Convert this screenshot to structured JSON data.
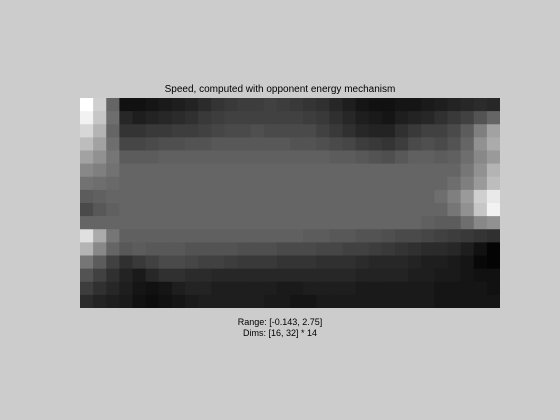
{
  "chart_data": {
    "type": "heatmap",
    "title": "Speed, computed with opponent energy mechanism",
    "range_label": "Range: [-0.143, 2.75]",
    "dims_label": "Dims: [16, 32] * 14",
    "range": [
      -0.143,
      2.75
    ],
    "rows": 16,
    "cols": 32,
    "colormap": "gray",
    "values": [
      [
        2.75,
        2.2,
        1.0,
        0.05,
        0.05,
        0.1,
        0.15,
        0.2,
        0.25,
        0.35,
        0.45,
        0.5,
        0.55,
        0.55,
        0.6,
        0.55,
        0.5,
        0.45,
        0.4,
        0.3,
        0.2,
        0.1,
        0.05,
        0.05,
        0.1,
        0.1,
        0.15,
        0.2,
        0.25,
        0.3,
        0.35,
        0.3
      ],
      [
        2.6,
        2.1,
        1.1,
        0.3,
        0.2,
        0.25,
        0.3,
        0.35,
        0.4,
        0.5,
        0.55,
        0.6,
        0.6,
        0.6,
        0.6,
        0.6,
        0.6,
        0.55,
        0.5,
        0.4,
        0.3,
        0.2,
        0.15,
        0.1,
        0.2,
        0.25,
        0.3,
        0.4,
        0.5,
        0.6,
        0.8,
        1.0
      ],
      [
        2.3,
        1.9,
        1.0,
        0.45,
        0.45,
        0.5,
        0.5,
        0.55,
        0.55,
        0.6,
        0.65,
        0.7,
        0.7,
        0.75,
        0.7,
        0.7,
        0.7,
        0.7,
        0.6,
        0.5,
        0.4,
        0.3,
        0.25,
        0.25,
        0.4,
        0.5,
        0.6,
        0.6,
        0.7,
        0.9,
        1.3,
        1.7
      ],
      [
        2.0,
        1.7,
        1.1,
        0.65,
        0.65,
        0.7,
        0.75,
        0.75,
        0.8,
        0.8,
        0.85,
        0.85,
        0.85,
        0.85,
        0.85,
        0.85,
        0.8,
        0.8,
        0.75,
        0.7,
        0.65,
        0.55,
        0.5,
        0.45,
        0.55,
        0.7,
        0.75,
        0.7,
        0.8,
        1.0,
        1.5,
        1.8
      ],
      [
        1.7,
        1.5,
        1.2,
        0.9,
        0.9,
        0.9,
        0.95,
        0.95,
        0.95,
        0.95,
        0.95,
        0.95,
        0.95,
        0.95,
        0.95,
        0.95,
        0.95,
        0.95,
        0.95,
        0.9,
        0.9,
        0.85,
        0.8,
        0.75,
        0.85,
        0.95,
        0.95,
        0.9,
        0.95,
        1.1,
        1.4,
        1.6
      ],
      [
        1.4,
        1.3,
        1.15,
        1.0,
        1.0,
        1.0,
        1.0,
        1.0,
        1.0,
        1.0,
        1.0,
        1.0,
        1.0,
        1.0,
        1.0,
        1.0,
        1.0,
        1.0,
        1.0,
        1.0,
        1.0,
        1.0,
        1.0,
        1.0,
        1.0,
        1.0,
        1.0,
        1.0,
        1.0,
        1.2,
        1.5,
        1.9
      ],
      [
        1.15,
        1.1,
        1.05,
        1.0,
        1.0,
        1.0,
        1.0,
        1.0,
        1.0,
        1.0,
        1.0,
        1.0,
        1.0,
        1.0,
        1.0,
        1.0,
        1.0,
        1.0,
        1.0,
        1.0,
        1.0,
        1.0,
        1.0,
        1.0,
        1.0,
        1.0,
        1.0,
        1.0,
        1.1,
        1.3,
        1.6,
        2.0
      ],
      [
        0.9,
        0.95,
        1.0,
        1.0,
        1.0,
        1.0,
        1.0,
        1.0,
        1.0,
        1.0,
        1.0,
        1.0,
        1.0,
        1.0,
        1.0,
        1.0,
        1.0,
        1.0,
        1.0,
        1.0,
        1.0,
        1.0,
        1.0,
        1.0,
        1.0,
        1.0,
        1.0,
        1.1,
        1.3,
        1.6,
        2.2,
        2.5
      ],
      [
        0.7,
        0.85,
        0.95,
        1.0,
        1.0,
        1.0,
        1.0,
        1.0,
        1.0,
        1.0,
        1.0,
        1.0,
        1.0,
        1.0,
        1.0,
        1.0,
        1.0,
        1.0,
        1.0,
        1.0,
        1.0,
        1.0,
        1.0,
        1.0,
        1.0,
        1.0,
        1.0,
        1.0,
        1.2,
        1.5,
        2.1,
        2.6
      ],
      [
        1.0,
        1.0,
        1.0,
        1.0,
        1.0,
        1.0,
        1.0,
        1.0,
        1.0,
        1.0,
        1.0,
        1.0,
        1.0,
        1.0,
        1.0,
        1.0,
        1.0,
        1.0,
        1.0,
        1.0,
        1.0,
        1.0,
        1.0,
        1.0,
        1.0,
        1.0,
        0.95,
        0.9,
        0.9,
        1.1,
        1.4,
        1.5
      ],
      [
        2.4,
        1.8,
        1.2,
        0.95,
        0.95,
        0.95,
        0.95,
        0.95,
        0.95,
        0.95,
        0.95,
        0.95,
        0.95,
        0.95,
        0.95,
        0.95,
        0.95,
        0.9,
        0.9,
        0.85,
        0.85,
        0.8,
        0.8,
        0.75,
        0.7,
        0.7,
        0.65,
        0.6,
        0.55,
        0.5,
        0.45,
        0.4
      ],
      [
        1.9,
        1.4,
        1.0,
        0.85,
        0.9,
        0.85,
        0.85,
        0.85,
        0.8,
        0.8,
        0.8,
        0.8,
        0.75,
        0.75,
        0.75,
        0.7,
        0.7,
        0.7,
        0.65,
        0.65,
        0.6,
        0.6,
        0.55,
        0.5,
        0.45,
        0.4,
        0.35,
        0.35,
        0.3,
        0.2,
        0.05,
        -0.1
      ],
      [
        1.2,
        0.9,
        0.6,
        0.4,
        0.5,
        0.6,
        0.7,
        0.7,
        0.65,
        0.6,
        0.6,
        0.55,
        0.5,
        0.5,
        0.5,
        0.45,
        0.45,
        0.45,
        0.4,
        0.4,
        0.4,
        0.35,
        0.3,
        0.3,
        0.3,
        0.25,
        0.2,
        0.2,
        0.15,
        0.1,
        -0.05,
        -0.1
      ],
      [
        0.8,
        0.6,
        0.4,
        0.25,
        0.15,
        0.3,
        0.4,
        0.4,
        0.35,
        0.35,
        0.3,
        0.3,
        0.3,
        0.3,
        0.3,
        0.3,
        0.3,
        0.3,
        0.3,
        0.3,
        0.3,
        0.25,
        0.25,
        0.25,
        0.25,
        0.2,
        0.2,
        0.15,
        0.15,
        0.1,
        0.05,
        0.05
      ],
      [
        0.55,
        0.4,
        0.3,
        0.2,
        0.1,
        0.05,
        0.1,
        0.2,
        0.25,
        0.25,
        0.2,
        0.2,
        0.2,
        0.2,
        0.2,
        0.15,
        0.15,
        0.2,
        0.2,
        0.2,
        0.2,
        0.15,
        0.15,
        0.15,
        0.15,
        0.15,
        0.15,
        0.1,
        0.1,
        0.1,
        0.1,
        0.05
      ],
      [
        0.35,
        0.25,
        0.2,
        0.15,
        0.05,
        0.0,
        0.05,
        0.1,
        0.15,
        0.2,
        0.2,
        0.2,
        0.2,
        0.2,
        0.15,
        0.15,
        0.1,
        0.1,
        0.15,
        0.15,
        0.15,
        0.15,
        0.15,
        0.15,
        0.15,
        0.15,
        0.15,
        0.1,
        0.1,
        0.1,
        0.1,
        0.1
      ]
    ]
  }
}
